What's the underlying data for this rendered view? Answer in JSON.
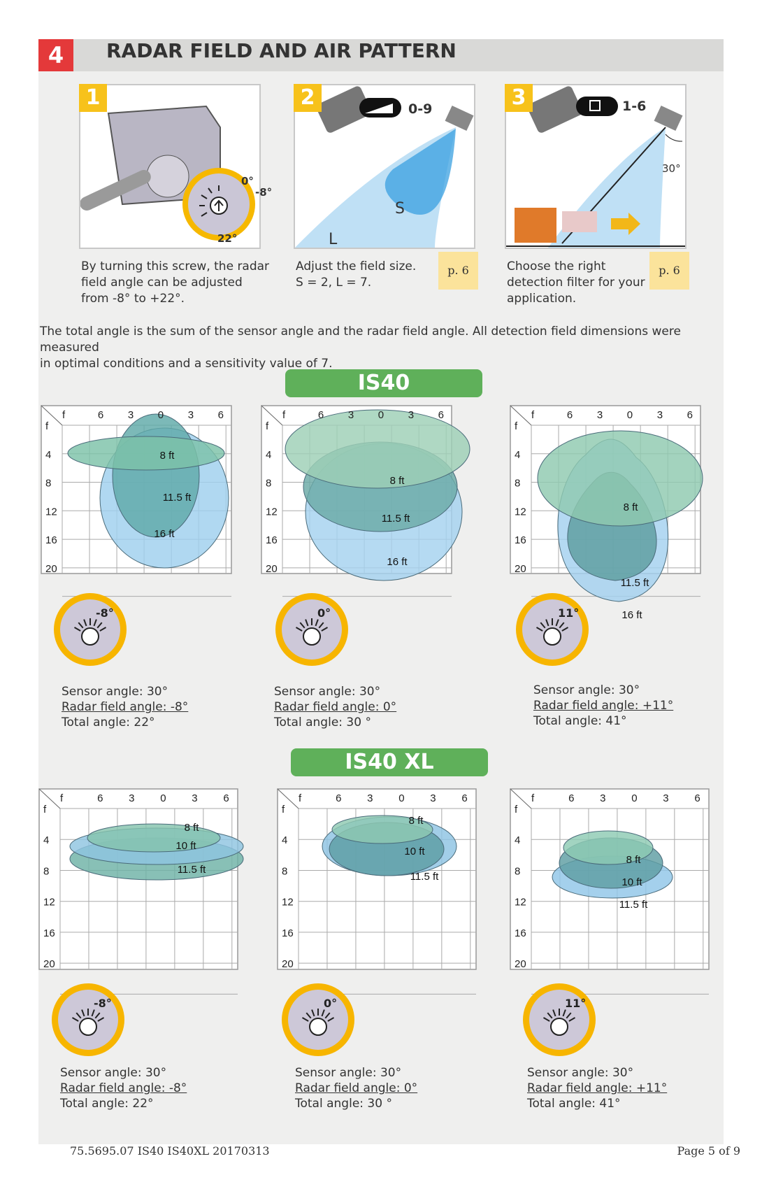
{
  "section": {
    "number": "4",
    "title": "RADAR FIELD AND AIR PATTERN"
  },
  "steps": [
    {
      "number": "1",
      "caption_lines": [
        "By turning this screw, the radar",
        "field angle can be adjusted",
        "from -8° to +22°."
      ],
      "dial_labels": {
        "top": "0°",
        "right": "-8°",
        "bottom": "22°"
      }
    },
    {
      "number": "2",
      "caption_lines": [
        "Adjust the field size.",
        "S = 2, L = 7."
      ],
      "remote_label": "0-9",
      "field_labels": {
        "small": "S",
        "large": "L"
      },
      "page_ref": "p. 6"
    },
    {
      "number": "3",
      "caption_lines": [
        "Choose the right",
        "detection filter for your",
        "application."
      ],
      "remote_label": "1-6",
      "angle_label": "30°",
      "page_ref": "p. 6"
    }
  ],
  "intro_lines": [
    "The total angle is the sum of the sensor angle and the radar field angle. All detection field dimensions were measured",
    "in optimal conditions and a sensitivity value of 7."
  ],
  "groups": [
    {
      "title": "IS40",
      "charts": [
        {
          "x_ticks": [
            "f",
            "6",
            "3",
            "0",
            "3",
            "6"
          ],
          "y_ticks": [
            "f",
            "4",
            "8",
            "12",
            "16",
            "20"
          ],
          "field_labels": [
            "8 ft",
            "11.5 ft",
            "16 ft"
          ],
          "dial_label": "-8°",
          "info": {
            "sensor": "Sensor angle: 30°",
            "radar": "Radar field angle: -8°",
            "total": "Total angle: 22°"
          }
        },
        {
          "x_ticks": [
            "f",
            "6",
            "3",
            "0",
            "3",
            "6"
          ],
          "y_ticks": [
            "f",
            "4",
            "8",
            "12",
            "16",
            "20"
          ],
          "field_labels": [
            "8 ft",
            "11.5 ft",
            "16 ft"
          ],
          "dial_label": "0°",
          "info": {
            "sensor": "Sensor angle: 30°",
            "radar": "Radar field angle: 0°",
            "total": "Total angle: 30 °"
          }
        },
        {
          "x_ticks": [
            "f",
            "6",
            "3",
            "0",
            "3",
            "6"
          ],
          "y_ticks": [
            "f",
            "4",
            "8",
            "12",
            "16",
            "20"
          ],
          "field_labels": [
            "8 ft",
            "11.5 ft",
            "16 ft"
          ],
          "dial_label": "11°",
          "info": {
            "sensor": "Sensor angle: 30°",
            "radar": "Radar field angle: +11°",
            "total": "Total angle: 41°"
          }
        }
      ]
    },
    {
      "title": "IS40 XL",
      "charts": [
        {
          "x_ticks": [
            "f",
            "6",
            "3",
            "0",
            "3",
            "6"
          ],
          "y_ticks": [
            "f",
            "4",
            "8",
            "12",
            "16",
            "20"
          ],
          "field_labels": [
            "8 ft",
            "10 ft",
            "11.5 ft"
          ],
          "dial_label": "-8°",
          "info": {
            "sensor": "Sensor angle: 30°",
            "radar": "Radar field angle: -8°",
            "total": "Total angle: 22°"
          }
        },
        {
          "x_ticks": [
            "f",
            "6",
            "3",
            "0",
            "3",
            "6"
          ],
          "y_ticks": [
            "f",
            "4",
            "8",
            "12",
            "16",
            "20"
          ],
          "field_labels": [
            "8 ft",
            "10 ft",
            "11.5 ft"
          ],
          "dial_label": "0°",
          "info": {
            "sensor": "Sensor angle: 30°",
            "radar": "Radar field angle: 0°",
            "total": "Total angle: 30 °"
          }
        },
        {
          "x_ticks": [
            "f",
            "6",
            "3",
            "0",
            "3",
            "6"
          ],
          "y_ticks": [
            "f",
            "4",
            "8",
            "12",
            "16",
            "20"
          ],
          "field_labels": [
            "8 ft",
            "10 ft",
            "11.5 ft"
          ],
          "dial_label": "11°",
          "info": {
            "sensor": "Sensor angle: 30°",
            "radar": "Radar field angle: +11°",
            "total": "Total angle: 41°"
          }
        }
      ]
    }
  ],
  "footer": {
    "doc_id": "75.5695.07 IS40 IS40XL 20170313",
    "page": "Page 5 of 9"
  },
  "colors": {
    "accent_red": "#e4393a",
    "step_yellow": "#f7c21b",
    "band_green": "#5fb05a",
    "dial_orange": "#f7b500",
    "field_blue": "#7fc3ea",
    "field_teal": "#6fb9a0"
  }
}
